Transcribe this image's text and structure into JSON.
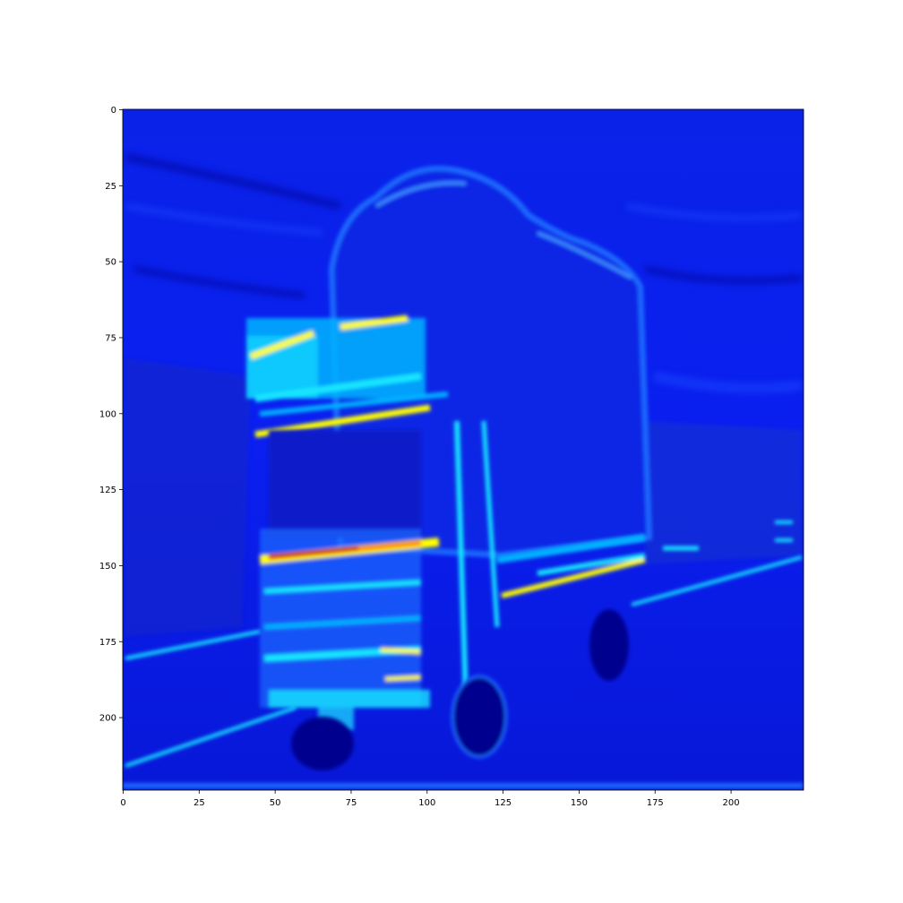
{
  "image": {
    "description_kind": "feature-map heatmap",
    "subject": "truck",
    "colormap": "jet",
    "colors": {
      "low": "#00008f",
      "base": "#0a1ff0",
      "mid_low": "#1f4bff",
      "mid": "#00b4ff",
      "cyan": "#19e6ff",
      "yellow": "#ffff00",
      "orange": "#ff8c00",
      "high": "#c80000"
    }
  },
  "axes": {
    "x_ticks": [
      "0",
      "25",
      "50",
      "75",
      "100",
      "125",
      "150",
      "175",
      "200"
    ],
    "y_ticks": [
      "0",
      "25",
      "50",
      "75",
      "100",
      "125",
      "150",
      "175",
      "200"
    ],
    "x_range": [
      0,
      224
    ],
    "y_range": [
      0,
      224
    ]
  }
}
